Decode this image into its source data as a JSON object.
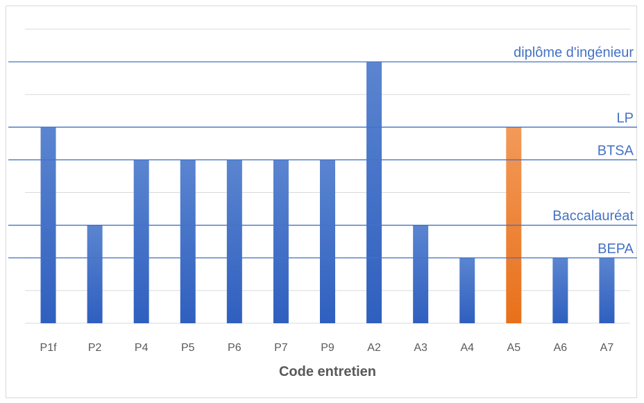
{
  "chart_data": {
    "type": "bar",
    "title": "",
    "xlabel": "Code entretien",
    "ylabel": "",
    "categories": [
      "P1f",
      "P2",
      "P4",
      "P5",
      "P6",
      "P7",
      "P9",
      "A2",
      "A3",
      "A4",
      "A5",
      "A6",
      "A7"
    ],
    "values": [
      6,
      3,
      5,
      5,
      5,
      5,
      5,
      8,
      3,
      2,
      6,
      2,
      2
    ],
    "highlight_index": 10,
    "ylim": [
      0,
      9
    ],
    "grid": true,
    "reference_levels": [
      {
        "label": "diplôme d'ingénieur",
        "value": 8
      },
      {
        "label": "LP",
        "value": 6
      },
      {
        "label": "BTSA",
        "value": 5
      },
      {
        "label": "Baccalauréat",
        "value": 3
      },
      {
        "label": "BEPA",
        "value": 2
      }
    ],
    "colors": {
      "bar": "#4472c4",
      "bar_gradient_top": "#5b85d0",
      "highlight": "#ed7d31",
      "highlight_gradient_top": "#f29a5a",
      "reference_line": "#4472c4",
      "grid": "#d9d9d9",
      "axis": "#d9d9d9",
      "text": "#595959"
    }
  }
}
